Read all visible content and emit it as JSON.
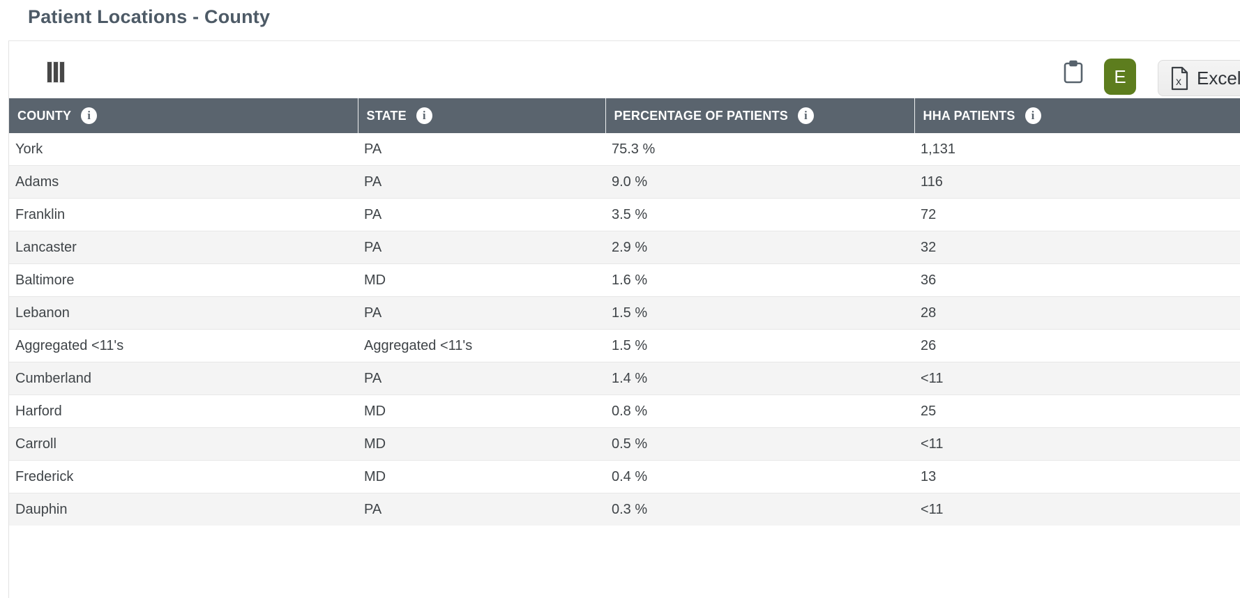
{
  "page": {
    "title": "Patient Locations - County"
  },
  "toolbar": {
    "columns_icon": "columns-selector",
    "clipboard_icon": "copy-to-clipboard",
    "profile_button": {
      "label": "E",
      "color": "#5d7d1e"
    },
    "excel_button": {
      "label": "Excel",
      "icon": "excel-file"
    }
  },
  "table": {
    "columns": [
      {
        "key": "county",
        "label": "COUNTY",
        "info_icon": true
      },
      {
        "key": "state",
        "label": "STATE",
        "info_icon": true
      },
      {
        "key": "pct",
        "label": "PERCENTAGE OF PATIENTS",
        "info_icon": true
      },
      {
        "key": "hha",
        "label": "HHA PATIENTS",
        "info_icon": true
      }
    ],
    "rows": [
      [
        "York",
        "PA",
        "75.3 %",
        "1,131"
      ],
      [
        "Adams",
        "PA",
        "9.0 %",
        "116"
      ],
      [
        "Franklin",
        "PA",
        "3.5 %",
        "72"
      ],
      [
        "Lancaster",
        "PA",
        "2.9 %",
        "32"
      ],
      [
        "Baltimore",
        "MD",
        "1.6 %",
        "36"
      ],
      [
        "Lebanon",
        "PA",
        "1.5 %",
        "28"
      ],
      [
        "Aggregated <11's",
        "Aggregated <11's",
        "1.5 %",
        "26"
      ],
      [
        "Cumberland",
        "PA",
        "1.4 %",
        "<11"
      ],
      [
        "Harford",
        "MD",
        "0.8 %",
        "25"
      ],
      [
        "Carroll",
        "MD",
        "0.5 %",
        "<11"
      ],
      [
        "Frederick",
        "MD",
        "0.4 %",
        "13"
      ],
      [
        "Dauphin",
        "PA",
        "0.3 %",
        "<11"
      ]
    ]
  },
  "colors": {
    "header_bg": "#5a646e",
    "accent_green": "#5d7d1e",
    "title_text": "#4d5a66",
    "row_alt_bg": "#f4f4f4",
    "icon_slate": "#57626c"
  }
}
